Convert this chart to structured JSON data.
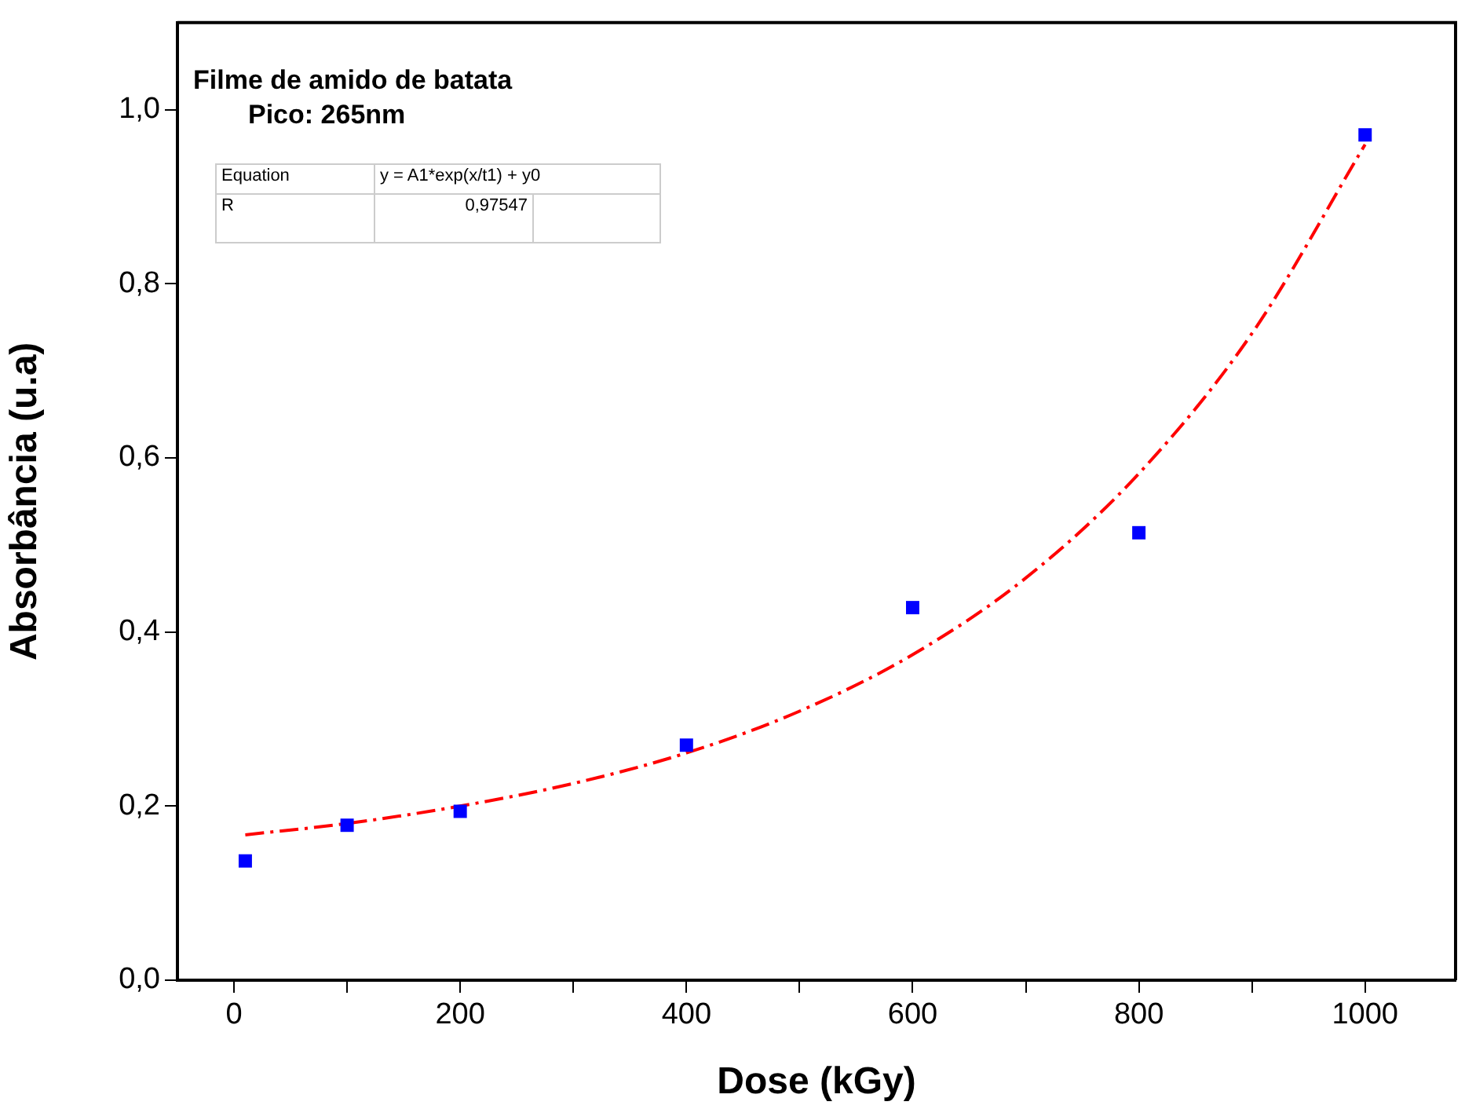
{
  "chart_data": {
    "type": "scatter",
    "title": "Filme de amido de batata",
    "subtitle": "Pico: 265nm",
    "xlabel": "Dose (kGy)",
    "ylabel": "Absorbância (u.a)",
    "annotations": [
      "Equation",
      "y = A1*exp(x/t1) + y0",
      "R",
      "0,97547"
    ],
    "xlim": [
      -50,
      1080
    ],
    "ylim": [
      0,
      1.1
    ],
    "xticks": [
      0,
      {
        "value": 100,
        "label": null
      },
      200,
      {
        "value": 300,
        "label": null
      },
      400,
      {
        "value": 500,
        "label": null
      },
      600,
      {
        "value": 700,
        "label": null
      },
      800,
      {
        "value": 900,
        "label": null
      },
      1000
    ],
    "yticks": [
      {
        "value": 0,
        "label": "0,0"
      },
      {
        "value": 0.2,
        "label": "0,2"
      },
      {
        "value": 0.4,
        "label": "0,4"
      },
      {
        "value": 0.6,
        "label": "0,6"
      },
      {
        "value": 0.8,
        "label": "0,8"
      },
      {
        "value": 1.0,
        "label": "1,0"
      }
    ],
    "grid": false,
    "legend": false,
    "series": [
      {
        "type": "scatter",
        "color": "#0000ff",
        "marker": "square",
        "x": [
          10,
          100,
          200,
          400,
          600,
          800,
          1000
        ],
        "values": [
          0.137,
          0.178,
          0.194,
          0.27,
          0.428,
          0.514,
          0.971
        ]
      },
      {
        "type": "line",
        "color": "#ff0000",
        "marker": "none",
        "line_style": "dashed",
        "x": [
          10,
          100,
          200,
          300,
          400,
          500,
          600,
          700,
          800,
          900,
          1000
        ],
        "values": [
          0.167,
          0.18,
          0.2,
          0.226,
          0.261,
          0.309,
          0.374,
          0.462,
          0.582,
          0.743,
          0.96
        ]
      }
    ]
  }
}
